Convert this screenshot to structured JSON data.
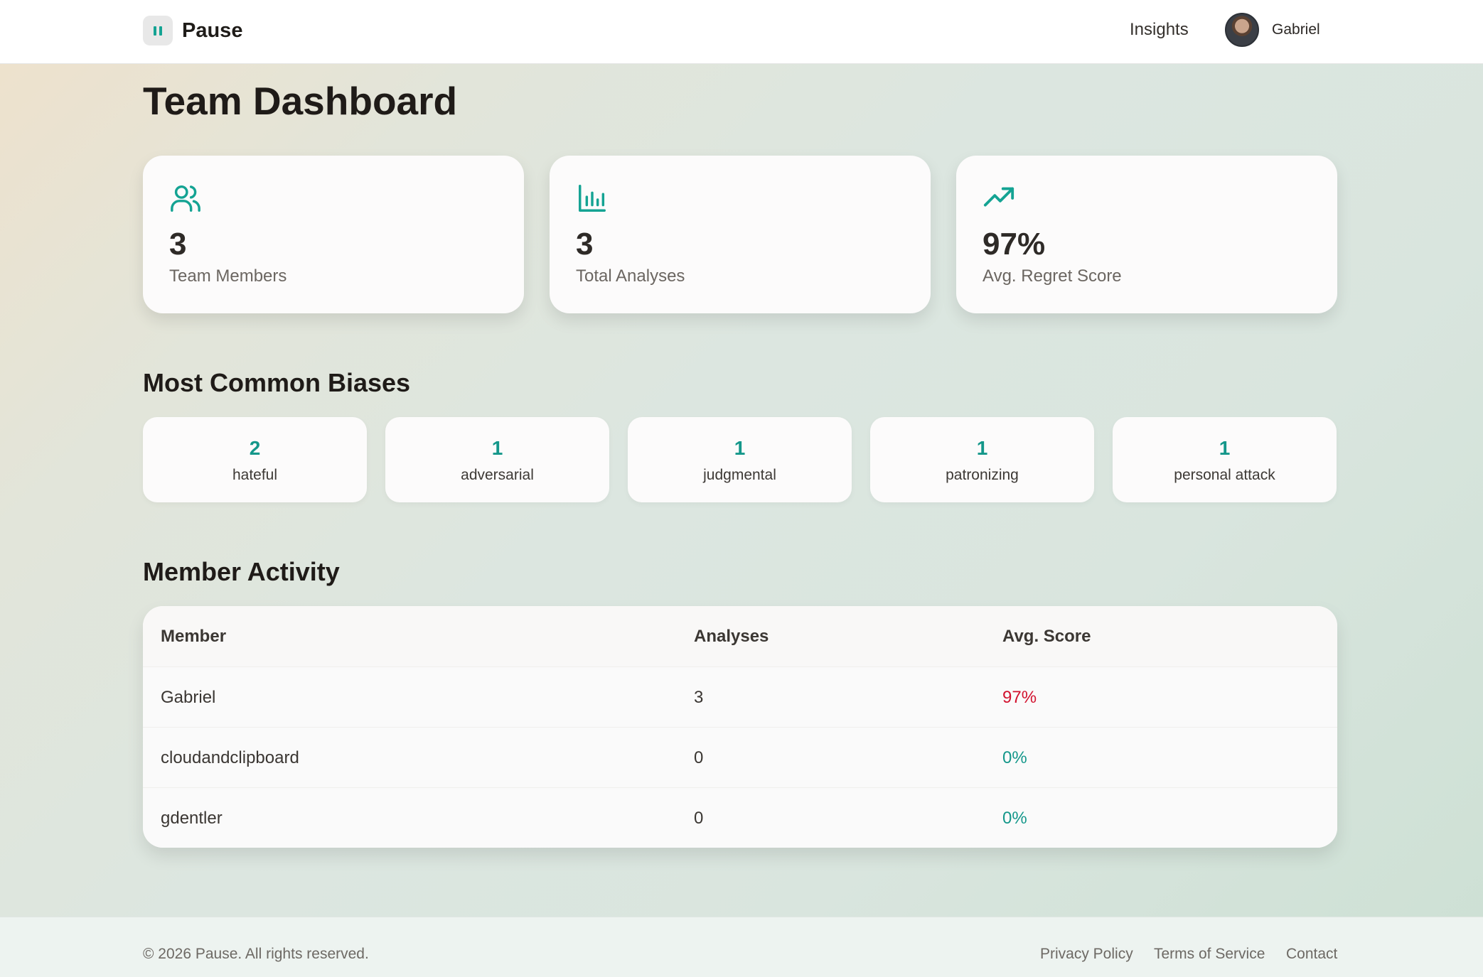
{
  "header": {
    "brand_name": "Pause",
    "nav_insights": "Insights",
    "user_name": "Gabriel"
  },
  "page": {
    "title": "Team Dashboard"
  },
  "stats": [
    {
      "icon": "users-icon",
      "value": "3",
      "label": "Team Members"
    },
    {
      "icon": "bar-chart-icon",
      "value": "3",
      "label": "Total Analyses"
    },
    {
      "icon": "trending-up-icon",
      "value": "97%",
      "label": "Avg. Regret Score"
    }
  ],
  "biases": {
    "title": "Most Common Biases",
    "items": [
      {
        "count": "2",
        "name": "hateful"
      },
      {
        "count": "1",
        "name": "adversarial"
      },
      {
        "count": "1",
        "name": "judgmental"
      },
      {
        "count": "1",
        "name": "patronizing"
      },
      {
        "count": "1",
        "name": "personal attack"
      }
    ]
  },
  "activity": {
    "title": "Member Activity",
    "columns": [
      "Member",
      "Analyses",
      "Avg. Score"
    ],
    "rows": [
      {
        "member": "Gabriel",
        "analyses": "3",
        "score": "97%"
      },
      {
        "member": "cloudandclipboard",
        "analyses": "0",
        "score": "0%"
      },
      {
        "member": "gdentler",
        "analyses": "0",
        "score": "0%"
      }
    ]
  },
  "footer": {
    "copyright": "© 2026 Pause. All rights reserved.",
    "links": [
      "Privacy Policy",
      "Terms of Service",
      "Contact"
    ]
  },
  "colors": {
    "accent": "#14978a",
    "danger": "#d2122e"
  }
}
